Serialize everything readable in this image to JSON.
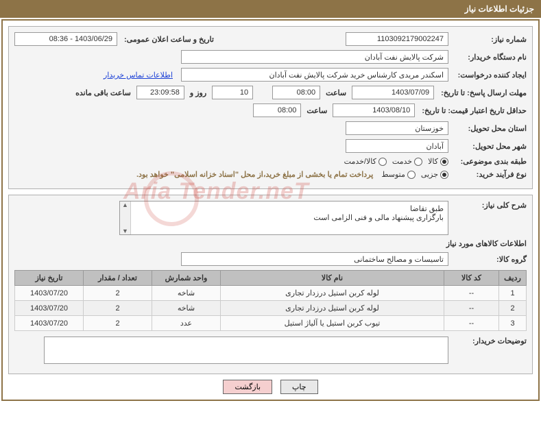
{
  "header": "جزئیات اطلاعات نیاز",
  "labels": {
    "need_no": "شماره نیاز:",
    "pub_datetime": "تاریخ و ساعت اعلان عمومی:",
    "buyer_org": "نام دستگاه خریدار:",
    "requester": "ایجاد کننده درخواست:",
    "contact_link": "اطلاعات تماس خریدار",
    "deadline_to": "مهلت ارسال پاسخ: تا تاریخ:",
    "time_lbl": "ساعت",
    "days_and": "روز و",
    "remaining": "ساعت باقی مانده",
    "validity_to": "حداقل تاریخ اعتبار قیمت: تا تاریخ:",
    "delivery_prov": "استان محل تحویل:",
    "delivery_city": "شهر محل تحویل:",
    "subject_class": "طبقه بندی موضوعی:",
    "subject_goods": "کالا",
    "subject_service": "خدمت",
    "subject_both": "کالا/خدمت",
    "proc_type": "نوع فرآیند خرید:",
    "proc_partial": "جزیی",
    "proc_mid": "متوسط",
    "payment_note": "پرداخت تمام یا بخشی از مبلغ خرید،از محل \"اسناد خزانه اسلامی\" خواهد بود.",
    "need_desc": "شرح کلی نیاز:",
    "desc_line1": "طبق تقاضا",
    "desc_line2": "بارگزاری پیشنهاد مالی و فنی الزامی است",
    "goods_info": "اطلاعات کالاهای مورد نیاز",
    "goods_group": "گروه کالا:",
    "buyer_comment": "توضیحات خریدار:",
    "btn_print": "چاپ",
    "btn_back": "بازگشت"
  },
  "values": {
    "need_no": "1103092179002247",
    "pub_datetime": "1403/06/29 - 08:36",
    "buyer_org": "شرکت پالایش نفت آبادان",
    "requester": "اسکندر مریدی کارشناس خرید شرکت پالایش نفت آبادان",
    "deadline_date": "1403/07/09",
    "deadline_time": "08:00",
    "days_left": "10",
    "time_left": "23:09:58",
    "validity_date": "1403/08/10",
    "validity_time": "08:00",
    "province": "خوزستان",
    "city": "آبادان",
    "goods_group": "تاسیسات و مصالح ساختمانی"
  },
  "table": {
    "columns": [
      "ردیف",
      "کد کالا",
      "نام کالا",
      "واحد شمارش",
      "تعداد / مقدار",
      "تاریخ نیاز"
    ],
    "rows": [
      [
        "1",
        "--",
        "لوله کربن استیل درزدار تجاری",
        "شاخه",
        "2",
        "1403/07/20"
      ],
      [
        "2",
        "--",
        "لوله کربن استیل درزدار تجاری",
        "شاخه",
        "2",
        "1403/07/20"
      ],
      [
        "3",
        "--",
        "تیوب کربن استیل یا آلیاژ استیل",
        "عدد",
        "2",
        "1403/07/20"
      ]
    ],
    "col_widths": [
      "40px",
      "80px",
      "auto",
      "100px",
      "100px",
      "100px"
    ]
  },
  "watermark": "Aria Tender.neT",
  "colors": {
    "header_bg": "#8d7347",
    "border": "#8d7347"
  }
}
